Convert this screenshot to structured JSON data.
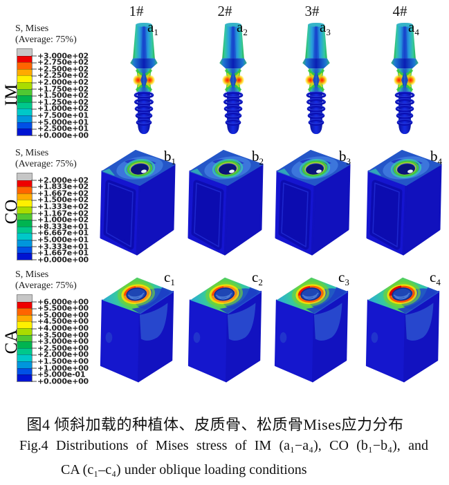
{
  "figure": {
    "column_headers": [
      "1#",
      "2#",
      "3#",
      "4#"
    ],
    "legend_band_colors": [
      "#c6c6c6",
      "#ee0000",
      "#ff6400",
      "#ffaa00",
      "#fff000",
      "#aadc00",
      "#50c832",
      "#00b450",
      "#00c88c",
      "#00c8c8",
      "#0096dc",
      "#0050e6",
      "#0014d2"
    ],
    "rows": [
      {
        "row_label": "IM",
        "legend": {
          "title": "S, Mises",
          "subtitle": "(Average: 75%)",
          "ticks": [
            "+3.000e+02",
            "+2.750e+02",
            "+2.500e+02",
            "+2.250e+02",
            "+2.000e+02",
            "+1.750e+02",
            "+1.500e+02",
            "+1.250e+02",
            "+1.000e+02",
            "+7.500e+01",
            "+5.000e+01",
            "+2.500e+01",
            "+0.000e+00"
          ]
        },
        "panels": [
          {
            "base": "a",
            "sub": "1"
          },
          {
            "base": "a",
            "sub": "2"
          },
          {
            "base": "a",
            "sub": "3"
          },
          {
            "base": "a",
            "sub": "4"
          }
        ]
      },
      {
        "row_label": "CO",
        "legend": {
          "title": "S, Mises",
          "subtitle": "(Average: 75%)",
          "ticks": [
            "+2.000e+02",
            "+1.833e+02",
            "+1.667e+02",
            "+1.500e+02",
            "+1.333e+02",
            "+1.167e+02",
            "+1.000e+02",
            "+8.333e+01",
            "+6.667e+01",
            "+5.000e+01",
            "+3.333e+01",
            "+1.667e+01",
            "+0.000e+00"
          ]
        },
        "panels": [
          {
            "base": "b",
            "sub": "1"
          },
          {
            "base": "b",
            "sub": "2"
          },
          {
            "base": "b",
            "sub": "3"
          },
          {
            "base": "b",
            "sub": "4"
          }
        ]
      },
      {
        "row_label": "CA",
        "legend": {
          "title": "S, Mises",
          "subtitle": "(Average: 75%)",
          "ticks": [
            "+6.000e+00",
            "+5.500e+00",
            "+5.000e+00",
            "+4.500e+00",
            "+4.000e+00",
            "+3.500e+00",
            "+3.000e+00",
            "+2.500e+00",
            "+2.000e+00",
            "+1.500e+00",
            "+1.000e+00",
            "+5.000e-01",
            "+0.000e+00"
          ]
        },
        "panels": [
          {
            "base": "c",
            "sub": "1"
          },
          {
            "base": "c",
            "sub": "2"
          },
          {
            "base": "c",
            "sub": "3"
          },
          {
            "base": "c",
            "sub": "4"
          }
        ]
      }
    ],
    "caption": {
      "chinese": "图4 倾斜加载的种植体、皮质骨、松质骨Mises应力分布",
      "english_line1": "Fig.4  Distributions of Mises stress of IM (a₁−a₄), CO (b₁−b₄), and",
      "english_line2": "CA (c₁–c₄) under oblique loading conditions"
    }
  }
}
